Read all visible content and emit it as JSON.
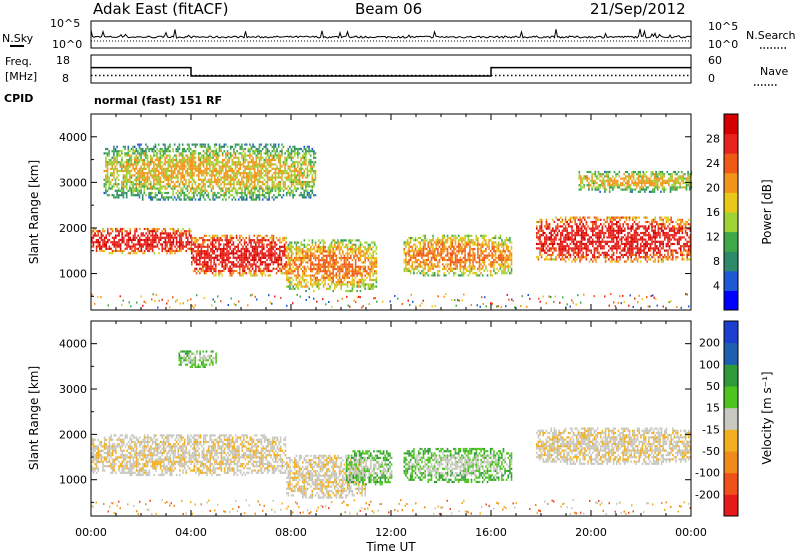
{
  "header": {
    "station": "Adak East (fitACF)",
    "beam": "Beam 06",
    "date": "21/Sep/2012"
  },
  "noise_panel": {
    "left_label": "N.Sky",
    "right_label": "N.Search",
    "left_ticks": [
      "10^5",
      "10^0"
    ],
    "right_ticks": [
      "10^5",
      "10^0"
    ]
  },
  "freq_panel": {
    "left_label_1": "Freq.",
    "left_label_2": "[MHz]",
    "right_label": "Nave",
    "left_ticks": [
      "18",
      "8"
    ],
    "right_ticks": [
      "60",
      "0"
    ],
    "freq_steps": [
      {
        "from": "00:00",
        "to": "04:00",
        "mhz": 13.5
      },
      {
        "from": "04:00",
        "to": "16:00",
        "mhz": 10.5
      },
      {
        "from": "16:00",
        "to": "24:00",
        "mhz": 13.5
      }
    ],
    "nave_level": 16
  },
  "cpid": {
    "label": "CPID",
    "mode": "normal (fast) 151 RF"
  },
  "chart_data": [
    {
      "type": "heatmap",
      "name": "power",
      "ylabel": "Slant Range [km]",
      "ylim": [
        200,
        4500
      ],
      "yticks": [
        1000,
        2000,
        3000,
        4000
      ],
      "xlim": [
        0,
        24
      ],
      "colorbar_label": "Power [dB]",
      "colorbar_ticks": [
        "28",
        "24",
        "20",
        "16",
        "12",
        "8",
        "4"
      ],
      "colorbar_colors": [
        "#0000ff",
        "#1f5ad6",
        "#2f8a6a",
        "#3fa94a",
        "#9fd335",
        "#e9c81a",
        "#f2961b",
        "#ef5a16",
        "#e8231b",
        "#d40000"
      ],
      "echo_regions": [
        {
          "t0": 0.0,
          "t1": 4.0,
          "r0": 1450,
          "r1": 2050,
          "level": "strong"
        },
        {
          "t0": 4.0,
          "t1": 7.8,
          "r0": 950,
          "r1": 1900,
          "level": "strong"
        },
        {
          "t0": 7.8,
          "t1": 11.4,
          "r0": 600,
          "r1": 1800,
          "level": "moderate"
        },
        {
          "t0": 12.5,
          "t1": 16.8,
          "r0": 950,
          "r1": 1900,
          "level": "moderate"
        },
        {
          "t0": 17.8,
          "t1": 24.0,
          "r0": 1250,
          "r1": 2300,
          "level": "strong"
        },
        {
          "t0": 0.5,
          "t1": 9.0,
          "r0": 2600,
          "r1": 3900,
          "level": "weak"
        },
        {
          "t0": 19.5,
          "t1": 24.0,
          "r0": 2800,
          "r1": 3300,
          "level": "weak"
        }
      ]
    },
    {
      "type": "heatmap",
      "name": "velocity",
      "ylabel": "Slant Range [km]",
      "ylim": [
        200,
        4500
      ],
      "yticks": [
        1000,
        2000,
        3000,
        4000
      ],
      "xlim": [
        0,
        24
      ],
      "xticks": [
        "00:00",
        "04:00",
        "08:00",
        "12:00",
        "16:00",
        "20:00",
        "00:00"
      ],
      "xlabel": "Time UT",
      "colorbar_label": "Velocity [m s⁻¹]",
      "colorbar_ticks": [
        "200",
        "100",
        "50",
        "15",
        "-15",
        "-50",
        "-100",
        "-200"
      ],
      "colorbar_colors": [
        "#e61a1a",
        "#f0501a",
        "#f08a1a",
        "#f2b020",
        "#c8c8c0",
        "#4fc41f",
        "#2e9a3a",
        "#1f5fb0",
        "#1c3fd0"
      ],
      "echo_regions": [
        {
          "t0": 0.0,
          "t1": 7.8,
          "r0": 1100,
          "r1": 2050,
          "level": "ground"
        },
        {
          "t0": 7.8,
          "t1": 11.0,
          "r0": 600,
          "r1": 1600,
          "level": "ground"
        },
        {
          "t0": 10.2,
          "t1": 12.0,
          "r0": 900,
          "r1": 1700,
          "level": "toward"
        },
        {
          "t0": 12.5,
          "t1": 16.8,
          "r0": 950,
          "r1": 1750,
          "level": "toward"
        },
        {
          "t0": 17.8,
          "t1": 24.0,
          "r0": 1350,
          "r1": 2200,
          "level": "ground"
        },
        {
          "t0": 3.5,
          "t1": 5.0,
          "r0": 3500,
          "r1": 3900,
          "level": "toward"
        }
      ]
    }
  ]
}
